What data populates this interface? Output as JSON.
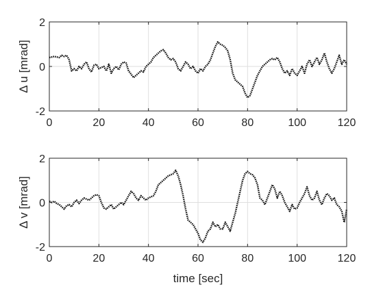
{
  "chart_data": [
    {
      "type": "line",
      "title": "",
      "xlabel": "",
      "ylabel": "Δ u [mrad]",
      "xlim": [
        0,
        120
      ],
      "ylim": [
        -2,
        2
      ],
      "xticks": [
        0,
        20,
        40,
        60,
        80,
        100,
        120
      ],
      "yticks": [
        -2,
        0,
        2
      ],
      "grid": true,
      "line_style": "dotted",
      "color": "#111111",
      "series": [
        {
          "x": [
            0,
            2,
            4,
            5,
            6,
            7,
            8,
            9,
            10,
            11,
            12,
            13,
            14,
            15,
            16,
            17,
            18,
            19,
            20,
            21,
            22,
            23,
            24,
            25,
            26,
            27,
            28,
            29,
            30,
            31,
            32,
            33,
            34,
            35,
            36,
            37,
            38,
            39,
            40,
            41,
            42,
            43,
            44,
            45,
            46,
            47,
            48,
            49,
            50,
            51,
            52,
            53,
            54,
            55,
            56,
            57,
            58,
            59,
            60,
            61,
            62,
            63,
            64,
            65,
            66,
            67,
            68,
            69,
            70,
            71,
            72,
            73,
            74,
            75,
            76,
            77,
            78,
            79,
            80,
            81,
            82,
            83,
            84,
            85,
            86,
            87,
            88,
            89,
            90,
            91,
            92,
            93,
            94,
            95,
            96,
            97,
            98,
            99,
            100,
            101,
            102,
            103,
            104,
            105,
            106,
            107,
            108,
            109,
            110,
            111,
            112,
            113,
            114,
            115,
            116,
            117,
            118,
            119,
            120
          ],
          "y": [
            0.4,
            0.45,
            0.4,
            0.5,
            0.45,
            0.5,
            0.3,
            -0.2,
            -0.1,
            -0.2,
            0.0,
            -0.1,
            0.1,
            0.2,
            -0.1,
            -0.25,
            0.05,
            0.1,
            -0.1,
            -0.05,
            0.0,
            -0.2,
            0.1,
            -0.3,
            -0.1,
            0.0,
            -0.15,
            0.1,
            0.2,
            0.15,
            -0.2,
            -0.35,
            -0.5,
            -0.4,
            -0.3,
            -0.2,
            -0.25,
            0.0,
            0.1,
            0.2,
            0.4,
            0.5,
            0.6,
            0.7,
            0.75,
            0.6,
            0.4,
            0.3,
            0.35,
            0.2,
            -0.1,
            -0.2,
            0.0,
            0.2,
            0.1,
            -0.1,
            0.0,
            -0.2,
            -0.3,
            -0.1,
            -0.2,
            0.0,
            0.1,
            0.3,
            0.6,
            0.9,
            1.1,
            1.0,
            0.95,
            0.85,
            0.7,
            0.3,
            -0.3,
            -0.6,
            -0.7,
            -0.8,
            -0.9,
            -1.2,
            -1.4,
            -1.3,
            -1.0,
            -0.7,
            -0.4,
            -0.2,
            0.0,
            0.1,
            0.2,
            0.3,
            0.35,
            0.3,
            0.4,
            0.2,
            -0.1,
            -0.3,
            -0.2,
            -0.4,
            -0.1,
            -0.3,
            -0.4,
            -0.2,
            0.0,
            -0.3,
            0.1,
            0.3,
            0.0,
            0.2,
            0.4,
            0.1,
            0.3,
            0.6,
            0.2,
            -0.1,
            -0.3,
            -0.1,
            0.2,
            0.5,
            0.1,
            0.3,
            0.1
          ]
        }
      ]
    },
    {
      "type": "line",
      "title": "",
      "xlabel": "time [sec]",
      "ylabel": "Δ v [mrad]",
      "xlim": [
        0,
        120
      ],
      "ylim": [
        -2,
        2
      ],
      "xticks": [
        0,
        20,
        40,
        60,
        80,
        100,
        120
      ],
      "yticks": [
        -2,
        0,
        2
      ],
      "grid": true,
      "line_style": "dotted",
      "color": "#111111",
      "series": [
        {
          "x": [
            0,
            1,
            2,
            3,
            4,
            5,
            6,
            7,
            8,
            9,
            10,
            11,
            12,
            13,
            14,
            15,
            16,
            17,
            18,
            19,
            20,
            21,
            22,
            23,
            24,
            25,
            26,
            27,
            28,
            29,
            30,
            31,
            32,
            33,
            34,
            35,
            36,
            37,
            38,
            39,
            40,
            41,
            42,
            43,
            44,
            45,
            46,
            47,
            48,
            49,
            50,
            51,
            52,
            53,
            54,
            55,
            56,
            57,
            58,
            59,
            60,
            61,
            62,
            63,
            64,
            65,
            66,
            67,
            68,
            69,
            70,
            71,
            72,
            73,
            74,
            75,
            76,
            77,
            78,
            79,
            80,
            81,
            82,
            83,
            84,
            85,
            86,
            87,
            88,
            89,
            90,
            91,
            92,
            93,
            94,
            95,
            96,
            97,
            98,
            99,
            100,
            101,
            102,
            103,
            104,
            105,
            106,
            107,
            108,
            109,
            110,
            111,
            112,
            113,
            114,
            115,
            116,
            117,
            118,
            119,
            120
          ],
          "y": [
            0.05,
            0.0,
            0.05,
            -0.05,
            -0.1,
            -0.2,
            -0.3,
            -0.15,
            -0.1,
            -0.2,
            0.0,
            0.1,
            -0.05,
            0.1,
            0.2,
            0.15,
            0.1,
            0.2,
            0.3,
            0.35,
            0.3,
            0.0,
            -0.25,
            -0.3,
            -0.2,
            -0.1,
            -0.3,
            -0.2,
            -0.1,
            0.0,
            -0.1,
            0.1,
            0.3,
            0.5,
            0.4,
            0.2,
            0.1,
            0.3,
            0.2,
            0.1,
            0.2,
            0.25,
            0.3,
            0.5,
            0.8,
            0.9,
            1.0,
            1.1,
            1.2,
            1.25,
            1.3,
            1.45,
            1.2,
            0.8,
            0.3,
            -0.3,
            -0.8,
            -0.9,
            -1.0,
            -1.2,
            -1.4,
            -1.7,
            -1.8,
            -1.6,
            -1.3,
            -1.2,
            -0.9,
            -1.1,
            -1.0,
            -1.2,
            -1.2,
            -0.9,
            -1.1,
            -1.3,
            -0.9,
            -0.5,
            0.0,
            0.5,
            1.0,
            1.3,
            1.4,
            1.3,
            1.25,
            1.1,
            0.8,
            0.2,
            0.1,
            -0.1,
            0.2,
            0.5,
            0.8,
            0.6,
            0.2,
            0.5,
            0.3,
            0.0,
            -0.2,
            -0.4,
            -0.1,
            -0.3,
            -0.25,
            0.0,
            0.2,
            0.4,
            0.7,
            0.3,
            0.1,
            0.2,
            0.5,
            0.1,
            -0.1,
            0.2,
            0.4,
            0.3,
            0.1,
            0.2,
            -0.1,
            -0.2,
            -0.4,
            -0.9,
            -0.3
          ]
        }
      ]
    }
  ]
}
